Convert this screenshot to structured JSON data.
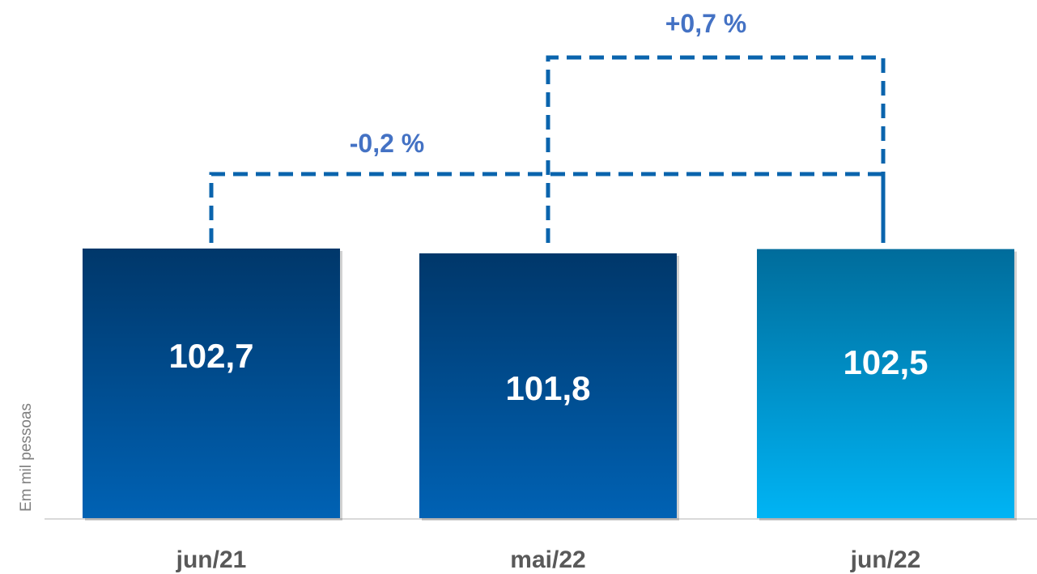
{
  "chart_data": {
    "type": "bar",
    "categories": [
      "jun/21",
      "mai/22",
      "jun/22"
    ],
    "values": [
      102.7,
      101.8,
      102.5
    ],
    "value_labels": [
      "102,7",
      "101,8",
      "102,5"
    ],
    "ylabel": "Em mil pessoas",
    "grid": false,
    "legend": "none",
    "comparisons": [
      {
        "from": "jun/21",
        "to": "jun/22",
        "label": "-0,2 %"
      },
      {
        "from": "mai/22",
        "to": "jun/22",
        "label": "+0,7 %"
      }
    ]
  },
  "colors": {
    "bar_dark_top": "#00376a",
    "bar_dark_bottom": "#0062b4",
    "bar_light_top": "#006c9b",
    "bar_light_bottom": "#00b4f4",
    "connector": "#0a64ad",
    "pct_text": "#4472c4",
    "axis": "#d9d9d9"
  }
}
